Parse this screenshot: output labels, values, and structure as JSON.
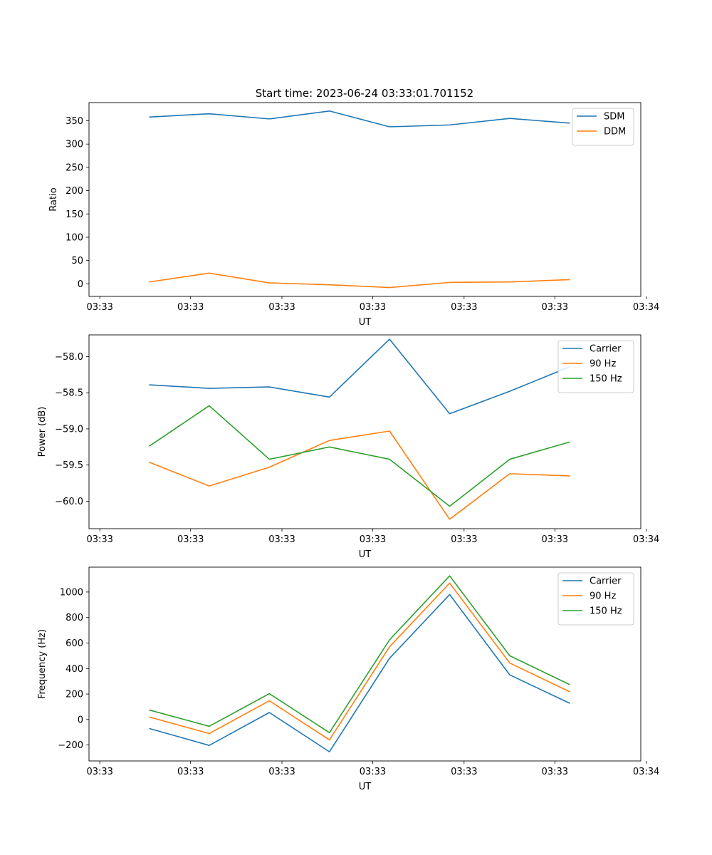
{
  "figure": {
    "title": "Start time: 2023-06-24 03:33:01.701152"
  },
  "colors": {
    "blue": "#1f77b4",
    "orange": "#ff7f0e",
    "green": "#2ca02c"
  },
  "chart_data": [
    {
      "type": "line",
      "title": "Start time: 2023-06-24 03:33:01.701152",
      "xlabel": "UT",
      "ylabel": "Ratio",
      "x": [
        1,
        2,
        3,
        4,
        5,
        6,
        7,
        8
      ],
      "xlim": [
        0,
        9.18
      ],
      "xticks": [
        0.18,
        1.69,
        3.21,
        4.72,
        6.24,
        7.75,
        9.27
      ],
      "xtick_labels": [
        "03:33",
        "03:33",
        "03:33",
        "03:33",
        "03:33",
        "03:33",
        "03:34"
      ],
      "ylim": [
        -27,
        389
      ],
      "yticks": [
        0,
        50,
        100,
        150,
        200,
        250,
        300,
        350
      ],
      "ytick_labels": [
        "0",
        "50",
        "100",
        "150",
        "200",
        "250",
        "300",
        "350"
      ],
      "legend": "top-right",
      "grid": false,
      "series": [
        {
          "name": "SDM",
          "color": "#1f77b4",
          "values": [
            358,
            365,
            354,
            371,
            337,
            341,
            355,
            345
          ]
        },
        {
          "name": "DDM",
          "color": "#ff7f0e",
          "values": [
            4,
            23,
            2,
            -2,
            -8,
            3,
            4,
            9
          ]
        }
      ]
    },
    {
      "type": "line",
      "title": "",
      "xlabel": "UT",
      "ylabel": "Power (dB)",
      "x": [
        1,
        2,
        3,
        4,
        5,
        6,
        7,
        8
      ],
      "xlim": [
        0,
        9.18
      ],
      "xticks": [
        0.18,
        1.69,
        3.21,
        4.72,
        6.24,
        7.75,
        9.27
      ],
      "xtick_labels": [
        "03:33",
        "03:33",
        "03:33",
        "03:33",
        "03:33",
        "03:33",
        "03:34"
      ],
      "ylim": [
        -60.38,
        -57.7
      ],
      "yticks": [
        -60.0,
        -59.5,
        -59.0,
        -58.5,
        -58.0
      ],
      "ytick_labels": [
        "−60.0",
        "−59.5",
        "−59.0",
        "−58.5",
        "−58.0"
      ],
      "legend": "top-right",
      "grid": false,
      "series": [
        {
          "name": "Carrier",
          "color": "#1f77b4",
          "values": [
            -58.39,
            -58.44,
            -58.42,
            -58.56,
            -57.76,
            -58.79,
            -58.48,
            -58.14
          ]
        },
        {
          "name": "90 Hz",
          "color": "#ff7f0e",
          "values": [
            -59.46,
            -59.79,
            -59.53,
            -59.16,
            -59.03,
            -60.25,
            -59.62,
            -59.65
          ]
        },
        {
          "name": "150 Hz",
          "color": "#2ca02c",
          "values": [
            -59.24,
            -58.68,
            -59.42,
            -59.25,
            -59.42,
            -60.07,
            -59.42,
            -59.18
          ]
        }
      ]
    },
    {
      "type": "line",
      "title": "",
      "xlabel": "UT",
      "ylabel": "Frequency (Hz)",
      "x": [
        1,
        2,
        3,
        4,
        5,
        6,
        7,
        8
      ],
      "xlim": [
        0,
        9.18
      ],
      "xticks": [
        0.18,
        1.69,
        3.21,
        4.72,
        6.24,
        7.75,
        9.27
      ],
      "xtick_labels": [
        "03:33",
        "03:33",
        "03:33",
        "03:33",
        "03:33",
        "03:33",
        "03:34"
      ],
      "ylim": [
        -325,
        1195
      ],
      "yticks": [
        -200,
        0,
        200,
        400,
        600,
        800,
        1000
      ],
      "ytick_labels": [
        "−200",
        "0",
        "200",
        "400",
        "600",
        "800",
        "1000"
      ],
      "legend": "top-right",
      "grid": false,
      "series": [
        {
          "name": "Carrier",
          "color": "#1f77b4",
          "values": [
            -70,
            -203,
            55,
            -253,
            480,
            980,
            350,
            127
          ]
        },
        {
          "name": "90 Hz",
          "color": "#ff7f0e",
          "values": [
            20,
            -110,
            147,
            -160,
            570,
            1070,
            443,
            217
          ]
        },
        {
          "name": "150 Hz",
          "color": "#2ca02c",
          "values": [
            75,
            -53,
            203,
            -103,
            625,
            1127,
            500,
            273
          ]
        }
      ]
    }
  ]
}
